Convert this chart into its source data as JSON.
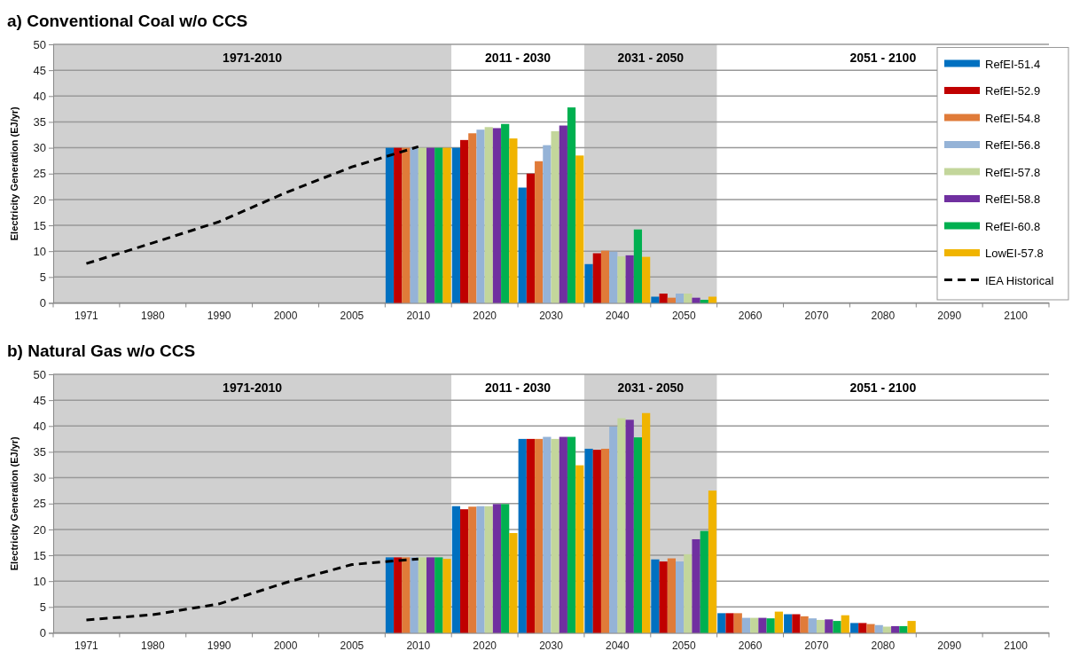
{
  "chart_data": [
    {
      "type": "bar",
      "title": "a) Conventional Coal w/o CCS",
      "ylabel": "Electricity Generation (EJ/yr)",
      "categories": [
        "1971",
        "1980",
        "1990",
        "2000",
        "2005",
        "2010",
        "2020",
        "2030",
        "2040",
        "2050",
        "2060",
        "2070",
        "2080",
        "2090",
        "2100"
      ],
      "ylim": [
        0,
        50
      ],
      "yticks": [
        0,
        5,
        10,
        15,
        20,
        25,
        30,
        35,
        40,
        45,
        50
      ],
      "grid": "y",
      "legend": "right",
      "bands": [
        {
          "axis": "x",
          "from": "1971",
          "to": "2010",
          "label": "1971-2010",
          "color": "#d0d0d0"
        },
        {
          "axis": "x",
          "from": "2020",
          "to": "2030",
          "label": "2011 - 2030",
          "color": "#ffffff"
        },
        {
          "axis": "x",
          "from": "2040",
          "to": "2050",
          "label": "2031 - 2050",
          "color": "#d0d0d0"
        },
        {
          "axis": "x",
          "from": "2060",
          "to": "2100",
          "label": "2051 - 2100",
          "color": "#ffffff"
        }
      ],
      "series": [
        {
          "name": "RefEI-51.4",
          "color": "#0070c0",
          "values": [
            null,
            null,
            null,
            null,
            null,
            30,
            30,
            22.3,
            7.5,
            1.2,
            null,
            null,
            null,
            null,
            null
          ]
        },
        {
          "name": "RefEI-52.9",
          "color": "#c00000",
          "values": [
            null,
            null,
            null,
            null,
            null,
            30,
            31.5,
            25,
            9.6,
            1.8,
            null,
            null,
            null,
            null,
            null
          ]
        },
        {
          "name": "RefEI-54.8",
          "color": "#e07b39",
          "values": [
            null,
            null,
            null,
            null,
            null,
            30,
            32.8,
            27.4,
            10.1,
            1,
            null,
            null,
            null,
            null,
            null
          ]
        },
        {
          "name": "RefEI-56.8",
          "color": "#95b3d7",
          "values": [
            null,
            null,
            null,
            null,
            null,
            30,
            33.5,
            30.5,
            9.9,
            1.8,
            null,
            null,
            null,
            null,
            null
          ]
        },
        {
          "name": "RefEI-57.8",
          "color": "#c3d69b",
          "values": [
            null,
            null,
            null,
            null,
            null,
            30,
            34,
            33.2,
            9,
            1.8,
            null,
            null,
            null,
            null,
            null
          ]
        },
        {
          "name": "RefEI-58.8",
          "color": "#7030a0",
          "values": [
            null,
            null,
            null,
            null,
            null,
            30,
            33.8,
            34.3,
            9.2,
            1,
            null,
            null,
            null,
            null,
            null
          ]
        },
        {
          "name": "RefEI-60.8",
          "color": "#00b050",
          "values": [
            null,
            null,
            null,
            null,
            null,
            30,
            34.6,
            37.8,
            14.2,
            0.6,
            null,
            null,
            null,
            null,
            null
          ]
        },
        {
          "name": "LowEI-57.8",
          "color": "#f0b400",
          "values": [
            null,
            null,
            null,
            null,
            null,
            30,
            31.8,
            28.5,
            8.9,
            1.2,
            null,
            null,
            null,
            null,
            null
          ]
        },
        {
          "name": "IEA Historical",
          "type": "line",
          "color": "#000000",
          "line_style": "dashed",
          "marker": "none",
          "values": [
            7.6,
            11.6,
            15.7,
            21.3,
            26.3,
            30.2,
            null,
            null,
            null,
            null,
            null,
            null,
            null,
            null,
            null
          ]
        }
      ]
    },
    {
      "type": "bar",
      "title": "b) Natural Gas w/o CCS",
      "ylabel": "Electricity Generation (EJ/yr)",
      "categories": [
        "1971",
        "1980",
        "1990",
        "2000",
        "2005",
        "2010",
        "2020",
        "2030",
        "2040",
        "2050",
        "2060",
        "2070",
        "2080",
        "2090",
        "2100"
      ],
      "ylim": [
        0,
        50
      ],
      "yticks": [
        0,
        5,
        10,
        15,
        20,
        25,
        30,
        35,
        40,
        45,
        50
      ],
      "grid": "y",
      "bands": [
        {
          "axis": "x",
          "from": "1971",
          "to": "2010",
          "label": "1971-2010",
          "color": "#d0d0d0"
        },
        {
          "axis": "x",
          "from": "2020",
          "to": "2030",
          "label": "2011 - 2030",
          "color": "#ffffff"
        },
        {
          "axis": "x",
          "from": "2040",
          "to": "2050",
          "label": "2031 - 2050",
          "color": "#d0d0d0"
        },
        {
          "axis": "x",
          "from": "2060",
          "to": "2100",
          "label": "2051 - 2100",
          "color": "#ffffff"
        }
      ],
      "series": [
        {
          "color": "#0070c0",
          "values": [
            null,
            null,
            null,
            null,
            null,
            14.6,
            24.5,
            37.5,
            35.6,
            14.2,
            3.8,
            3.6,
            1.9,
            null,
            null
          ]
        },
        {
          "color": "#c00000",
          "values": [
            null,
            null,
            null,
            null,
            null,
            14.6,
            23.9,
            37.5,
            35.4,
            13.8,
            3.8,
            3.6,
            1.9,
            null,
            null
          ]
        },
        {
          "color": "#e07b39",
          "values": [
            null,
            null,
            null,
            null,
            null,
            14.6,
            24.4,
            37.5,
            35.6,
            14.4,
            3.8,
            3.2,
            1.7,
            null,
            null
          ]
        },
        {
          "color": "#95b3d7",
          "values": [
            null,
            null,
            null,
            null,
            null,
            14.6,
            24.5,
            37.9,
            39.9,
            13.8,
            2.9,
            2.8,
            1.5,
            null,
            null
          ]
        },
        {
          "color": "#c3d69b",
          "values": [
            null,
            null,
            null,
            null,
            null,
            14.6,
            24.5,
            37.5,
            41.5,
            15.2,
            2.9,
            2.5,
            1.2,
            null,
            null
          ]
        },
        {
          "color": "#7030a0",
          "values": [
            null,
            null,
            null,
            null,
            null,
            14.6,
            24.9,
            37.9,
            41.2,
            18.1,
            2.9,
            2.6,
            1.3,
            null,
            null
          ]
        },
        {
          "color": "#00b050",
          "values": [
            null,
            null,
            null,
            null,
            null,
            14.6,
            24.9,
            37.9,
            37.8,
            19.7,
            2.8,
            2.3,
            1.3,
            null,
            null
          ]
        },
        {
          "color": "#f0b400",
          "values": [
            null,
            null,
            null,
            null,
            null,
            14.3,
            19.3,
            32.4,
            42.5,
            27.5,
            4.1,
            3.4,
            2.3,
            null,
            null
          ]
        },
        {
          "type": "line",
          "color": "#000000",
          "line_style": "dashed",
          "marker": "none",
          "values": [
            2.5,
            3.5,
            5.6,
            9.7,
            13.2,
            14.3,
            null,
            null,
            null,
            null,
            null,
            null,
            null,
            null,
            null
          ]
        }
      ]
    }
  ]
}
